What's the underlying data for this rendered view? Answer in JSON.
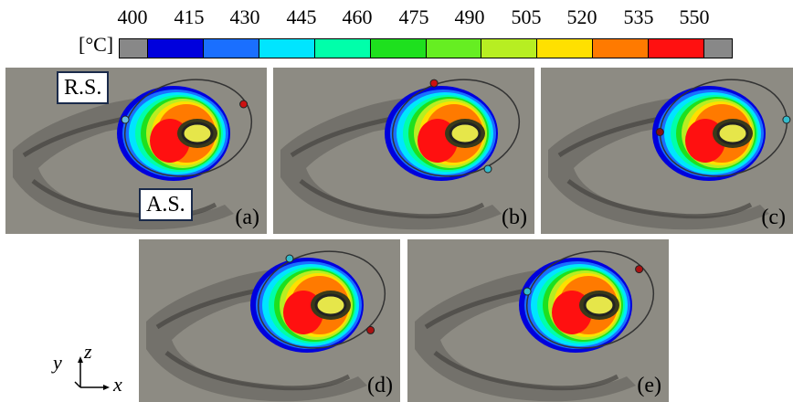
{
  "colorbar": {
    "unit": "[°C]",
    "ticks": [
      "400",
      "415",
      "430",
      "445",
      "460",
      "475",
      "490",
      "505",
      "520",
      "535",
      "550"
    ],
    "segment_colors": [
      "#0000dd",
      "#1a6fff",
      "#00e5ff",
      "#00ffaa",
      "#1ee01e",
      "#66ee22",
      "#b7ee22",
      "#ffe000",
      "#ff7a00",
      "#ff1010"
    ],
    "cap_color": "#888888"
  },
  "panels": [
    {
      "id": "a",
      "label": "(a)"
    },
    {
      "id": "b",
      "label": "(b)"
    },
    {
      "id": "c",
      "label": "(c)"
    },
    {
      "id": "d",
      "label": "(d)"
    },
    {
      "id": "e",
      "label": "(e)"
    }
  ],
  "tags": {
    "rs": "R.S.",
    "as": "A.S."
  },
  "axes": {
    "y": "y",
    "z": "z",
    "x": "x"
  }
}
